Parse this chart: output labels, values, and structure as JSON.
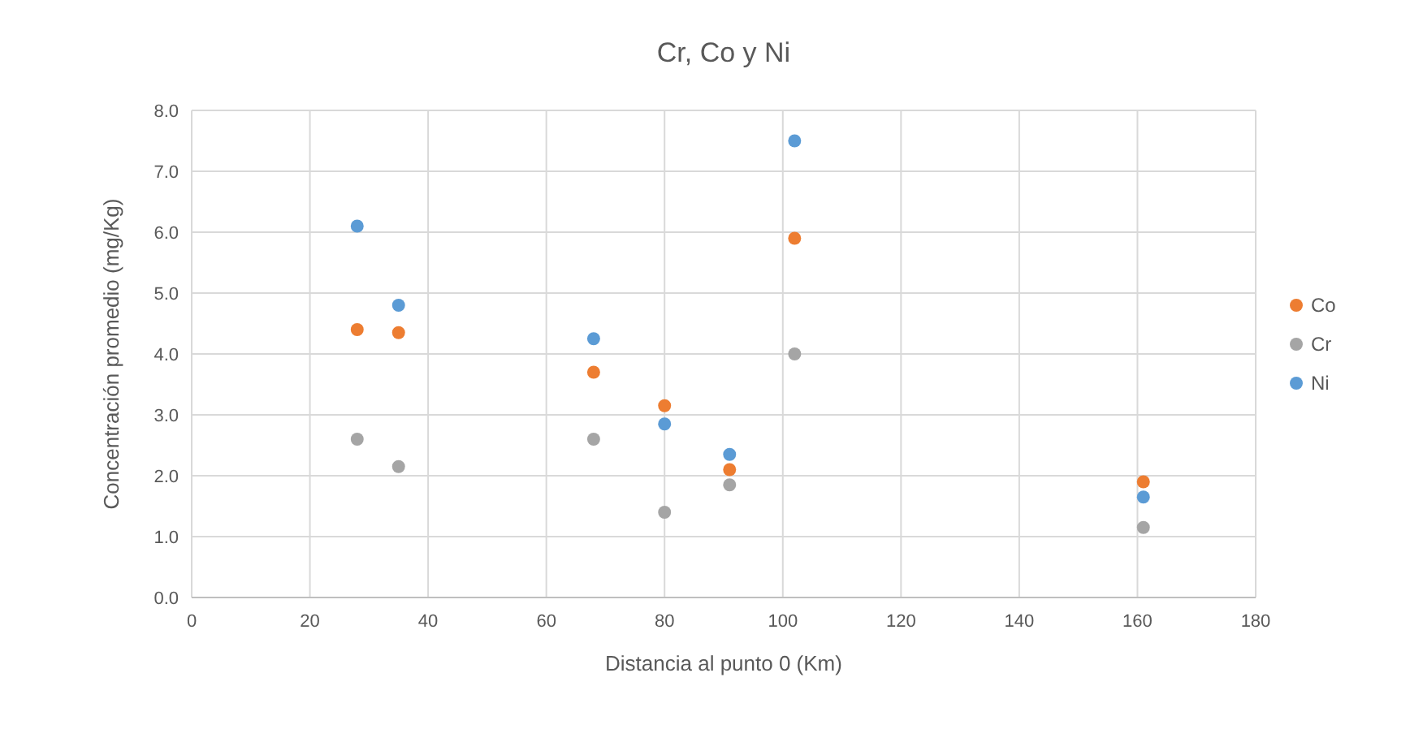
{
  "chart_data": {
    "type": "scatter",
    "title": "Cr, Co y Ni",
    "xlabel": "Distancia al punto 0 (Km)",
    "ylabel": "Concentración promedio (mg/Kg)",
    "x": [
      28,
      35,
      68,
      80,
      91,
      102,
      161
    ],
    "series": [
      {
        "name": "Co",
        "color": "#ed7d31",
        "values": [
          4.4,
          4.35,
          3.7,
          3.15,
          2.1,
          5.9,
          1.9
        ]
      },
      {
        "name": "Cr",
        "color": "#a5a5a5",
        "values": [
          2.6,
          2.15,
          2.6,
          1.4,
          1.85,
          4.0,
          1.15
        ]
      },
      {
        "name": "Ni",
        "color": "#5b9bd5",
        "values": [
          6.1,
          4.8,
          4.25,
          2.85,
          2.35,
          7.5,
          1.65
        ]
      }
    ],
    "xlim": [
      0,
      180
    ],
    "xticks": [
      0,
      20,
      40,
      60,
      80,
      100,
      120,
      140,
      160,
      180
    ],
    "ylim": [
      0,
      8
    ],
    "yticks": [
      {
        "value": 0,
        "label": "0.0"
      },
      {
        "value": 1,
        "label": "1.0"
      },
      {
        "value": 2,
        "label": "2.0"
      },
      {
        "value": 3,
        "label": "3.0"
      },
      {
        "value": 4,
        "label": "4.0"
      },
      {
        "value": 5,
        "label": "5.0"
      },
      {
        "value": 6,
        "label": "6.0"
      },
      {
        "value": 7,
        "label": "7.0"
      },
      {
        "value": 8,
        "label": "8.0"
      }
    ],
    "grid": true,
    "legend": "right",
    "marker": "circle"
  }
}
